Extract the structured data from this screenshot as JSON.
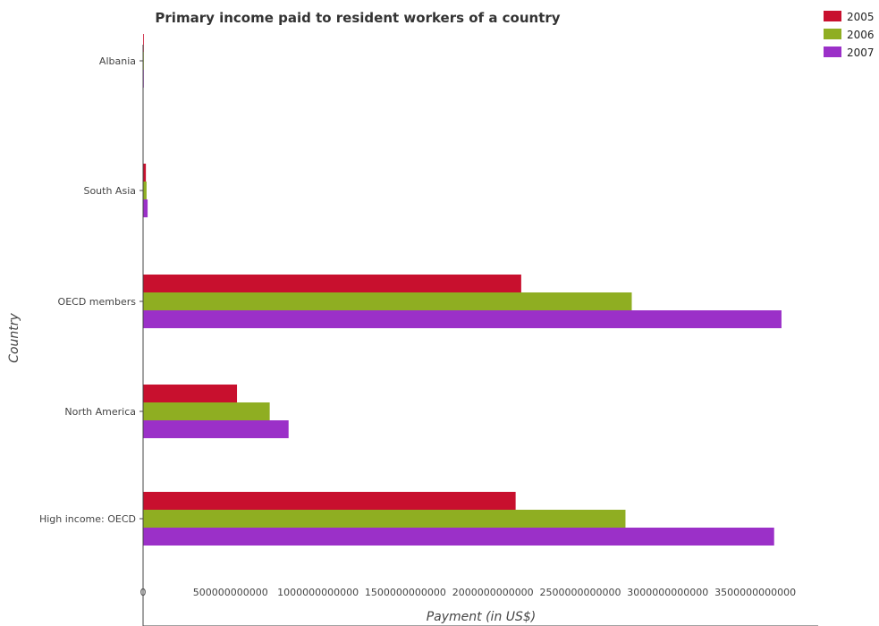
{
  "chart_data": {
    "type": "bar",
    "orientation": "horizontal",
    "title": "Primary income paid to resident workers of a country",
    "xlabel": "Payment (in US$)",
    "ylabel": "Country",
    "categories": [
      "High income: OECD",
      "North America",
      "OECD members",
      "South Asia",
      "Albania"
    ],
    "series": [
      {
        "name": "2005",
        "color": "#c8102e",
        "values": [
          2130000000000,
          537000000000,
          2162000000000,
          16000000000,
          250000000
        ]
      },
      {
        "name": "2006",
        "color": "#8fae22",
        "values": [
          2758000000000,
          724000000000,
          2794000000000,
          20000000000,
          300000000
        ]
      },
      {
        "name": "2007",
        "color": "#9b30c8",
        "values": [
          3608000000000,
          832000000000,
          3650000000000,
          26000000000,
          350000000
        ]
      }
    ],
    "x_ticks": [
      "0",
      "500000000000",
      "1000000000000",
      "1500000000000",
      "2000000000000",
      "2500000000000",
      "3000000000000",
      "3500000000000"
    ],
    "xlim": [
      0,
      3850000000000
    ],
    "grid": false,
    "legend_position": "top-right"
  }
}
